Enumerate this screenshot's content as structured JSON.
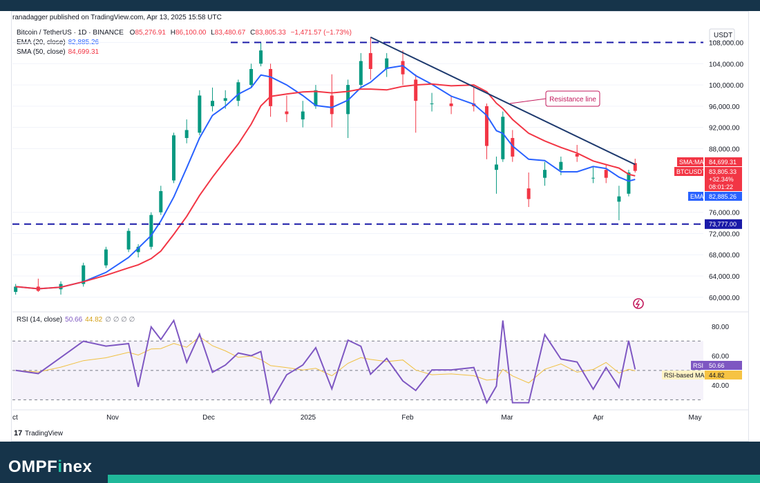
{
  "header": {
    "publisher": "ranadagger published on TradingView.com, Apr 13, 2025 15:58 UTC"
  },
  "legend": {
    "symbol": "Bitcoin / TetherUS · 1D · BINANCE",
    "open_label": "O",
    "open": "85,276.91",
    "high_label": "H",
    "high": "86,100.00",
    "low_label": "L",
    "low": "83,480.67",
    "close_label": "C",
    "close": "83,805.33",
    "change": "−1,471.57 (−1.73%)",
    "ema_label": "EMA (20, close)",
    "ema_value": "82,885.26",
    "sma_label": "SMA (50, close)",
    "sma_value": "84,699.31",
    "rsi_label": "RSI (14, close)",
    "rsi_value": "50.66",
    "rsi_ma_value": "44.82",
    "rsi_extra": "∅ ∅ ∅ ∅"
  },
  "price_axis": {
    "currency": "USDT",
    "ticks": [
      "108,000.00",
      "104,000.00",
      "100,000.00",
      "96,000.00",
      "92,000.00",
      "88,000.00",
      "76,000.00",
      "72,000.00",
      "68,000.00",
      "64,000.00",
      "60,000.00"
    ],
    "tick_values": [
      108000,
      104000,
      100000,
      96000,
      92000,
      88000,
      76000,
      72000,
      68000,
      64000,
      60000
    ]
  },
  "price_labels": {
    "sma_tag": "SMA:MA",
    "sma_value": "84,699.31",
    "btc_tag": "BTCUSDT",
    "btc_value": "83,805.33",
    "btc_change": "+32.34%",
    "btc_countdown": "08:01:22",
    "ema_tag": "EMA",
    "ema_value": "82,885.26",
    "support_value": "73,777.00"
  },
  "rsi_axis": {
    "ticks": [
      "80.00",
      "60.00",
      "40.00"
    ],
    "tick_values": [
      80,
      60,
      40
    ],
    "rsi_tag": "RSI",
    "rsi_value": "50.66",
    "ma_tag": "RSI-based MA",
    "ma_value": "44.82"
  },
  "time_axis": {
    "labels": [
      "ct",
      "Nov",
      "Dec",
      "2025",
      "Feb",
      "Mar",
      "Apr",
      "May"
    ]
  },
  "annotation": {
    "resistance_label": "Resistance line"
  },
  "footer": {
    "tradingview": "TradingView",
    "brand_main": "OMPF",
    "brand_accent": "i",
    "brand_tail": "nex"
  },
  "colors": {
    "up": "#089981",
    "down": "#f23645",
    "ema": "#2962ff",
    "sma": "#f23645",
    "rsi": "#7e57c2",
    "rsi_ma": "#f0c040",
    "trend": "#1e3a6e",
    "support": "#1a1aa8"
  },
  "chart_data": {
    "type": "candlestick",
    "series": [
      {
        "name": "BTCUSDT",
        "points": [
          [
            "Oct 2",
            61000,
            62500,
            60500,
            62000
          ],
          [
            "Oct 9",
            62000,
            63500,
            61000,
            61200
          ],
          [
            "Oct 16",
            61500,
            63000,
            60500,
            62500
          ],
          [
            "Oct 23",
            62500,
            66500,
            62000,
            66000
          ],
          [
            "Oct 30",
            66000,
            69500,
            65500,
            69000
          ],
          [
            "Nov 6",
            69000,
            73000,
            68500,
            72500
          ],
          [
            "Nov 9",
            68500,
            70000,
            67500,
            69500
          ],
          [
            "Nov 13",
            69500,
            76000,
            69000,
            75500
          ],
          [
            "Nov 16",
            76000,
            81000,
            75500,
            80000
          ],
          [
            "Nov 20",
            82000,
            91000,
            81500,
            90500
          ],
          [
            "Nov 24",
            90000,
            93500,
            89000,
            91500
          ],
          [
            "Nov 28",
            91000,
            99000,
            90500,
            98000
          ],
          [
            "Dec 2",
            96000,
            99500,
            95000,
            97000
          ],
          [
            "Dec 6",
            97000,
            99000,
            95500,
            97500
          ],
          [
            "Dec 10",
            97000,
            101000,
            96000,
            100500
          ],
          [
            "Dec 14",
            100000,
            104000,
            99500,
            103000
          ],
          [
            "Dec 17",
            104000,
            108000,
            103500,
            106500
          ],
          [
            "Dec 20",
            103000,
            104000,
            94000,
            96000
          ],
          [
            "Dec 25",
            95000,
            98000,
            93000,
            94500
          ],
          [
            "Dec 30",
            93500,
            97000,
            92000,
            95000
          ],
          [
            "Jan 3",
            96000,
            100000,
            95500,
            99000
          ],
          [
            "Jan 8",
            98000,
            102000,
            92000,
            94500
          ],
          [
            "Jan 13",
            94500,
            101000,
            90000,
            100000
          ],
          [
            "Jan 17",
            100000,
            106000,
            99500,
            104500
          ],
          [
            "Jan 20",
            106000,
            109000,
            101000,
            103000
          ],
          [
            "Jan 25",
            103000,
            106000,
            101500,
            105000
          ],
          [
            "Jan 30",
            104500,
            106500,
            100000,
            102000
          ],
          [
            "Feb 3",
            101000,
            102000,
            91000,
            97000
          ],
          [
            "Feb 8",
            96500,
            98500,
            95000,
            96500
          ],
          [
            "Feb 14",
            96500,
            98000,
            94500,
            96000
          ],
          [
            "Feb 21",
            96500,
            99500,
            95000,
            96000
          ],
          [
            "Feb 25",
            96000,
            96500,
            86000,
            88500
          ],
          [
            "Feb 28",
            84000,
            86500,
            79500,
            85000
          ],
          [
            "Mar 2",
            86000,
            95000,
            85500,
            94000
          ],
          [
            "Mar 5",
            90000,
            91500,
            85500,
            86500
          ],
          [
            "Mar 10",
            80500,
            83500,
            77000,
            78500
          ],
          [
            "Mar 15",
            82500,
            85500,
            81000,
            84000
          ],
          [
            "Mar 20",
            84000,
            86500,
            83000,
            85500
          ],
          [
            "Mar 25",
            87000,
            88700,
            85500,
            86500
          ],
          [
            "Mar 30",
            82500,
            84500,
            81500,
            82500
          ],
          [
            "Apr 3",
            84000,
            85000,
            81500,
            82500
          ],
          [
            "Apr 7",
            78000,
            81000,
            74500,
            79000
          ],
          [
            "Apr 10",
            79500,
            84000,
            79000,
            83500
          ],
          [
            "Apr 12",
            85276.91,
            86100,
            83480.67,
            83805.33
          ]
        ]
      },
      {
        "name": "EMA (20, close)",
        "value": 82885.26
      },
      {
        "name": "SMA (50, close)",
        "value": 84699.31
      },
      {
        "name": "RSI (14, close)",
        "value": 50.66
      },
      {
        "name": "RSI-based MA",
        "value": 44.82
      }
    ],
    "support_level": 73777,
    "resistance_line": {
      "from": [
        "Jan 20",
        109000
      ],
      "to": [
        "Apr 12",
        85000
      ]
    },
    "y_range": [
      57500,
      110800
    ],
    "rsi_range": [
      25,
      88
    ],
    "rsi_bands": [
      70,
      50,
      30
    ]
  }
}
